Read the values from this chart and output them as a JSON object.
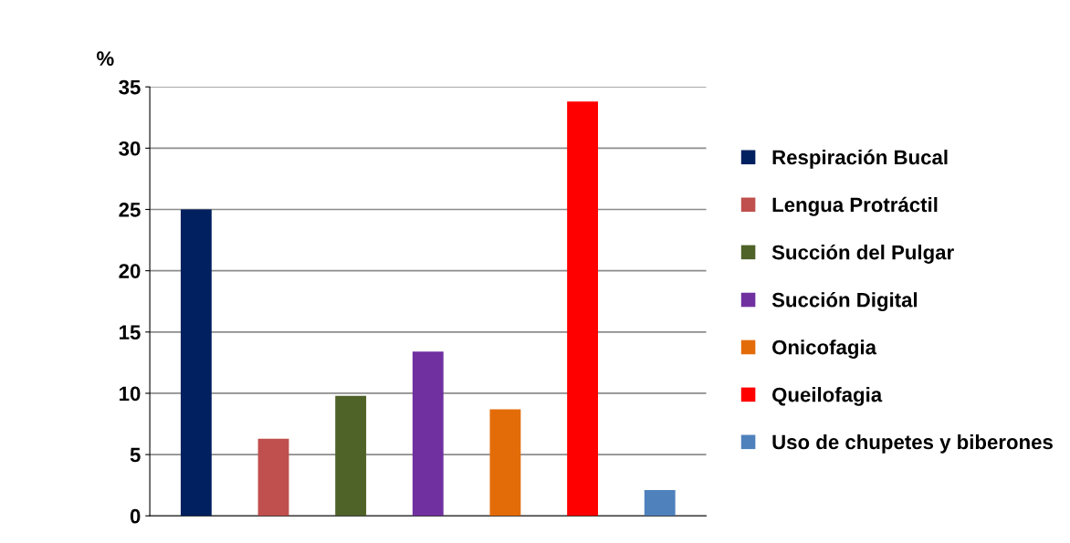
{
  "chart_data": {
    "type": "bar",
    "ylabel": "%",
    "categories": [
      null,
      null,
      null,
      null,
      null,
      null,
      null
    ],
    "series": [
      {
        "name": "Respiración Bucal",
        "color": "#002060",
        "values": [
          25.0,
          null,
          null,
          null,
          null,
          null,
          null
        ]
      },
      {
        "name": "Lengua Protráctil",
        "color": "#c0504d",
        "values": [
          null,
          6.3,
          null,
          null,
          null,
          null,
          null
        ]
      },
      {
        "name": "Succión del Pulgar",
        "color": "#4f6228",
        "values": [
          null,
          null,
          9.8,
          null,
          null,
          null,
          null
        ]
      },
      {
        "name": "Succión Digital",
        "color": "#7030a0",
        "values": [
          null,
          null,
          null,
          13.4,
          null,
          null,
          null
        ]
      },
      {
        "name": "Onicofagia",
        "color": "#e36c09",
        "values": [
          null,
          null,
          null,
          null,
          8.7,
          null,
          null
        ]
      },
      {
        "name": "Queilofagia",
        "color": "#ff0000",
        "values": [
          null,
          null,
          null,
          null,
          null,
          33.8,
          null
        ]
      },
      {
        "name": "Uso de chupetes y biberones",
        "color": "#4f81bd",
        "values": [
          null,
          null,
          null,
          null,
          null,
          null,
          2.1
        ]
      }
    ],
    "ylim": [
      0,
      35
    ],
    "yticks": [
      0,
      5,
      10,
      15,
      20,
      25,
      30,
      35
    ],
    "grid": "y",
    "legend": "right"
  }
}
